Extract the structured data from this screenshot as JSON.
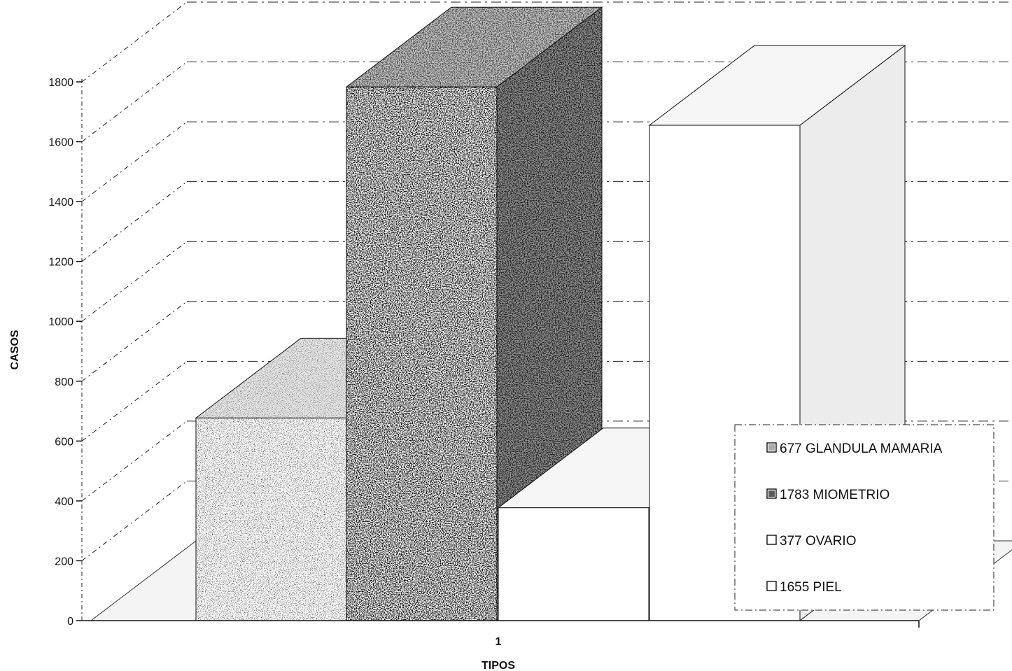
{
  "chart_data": {
    "type": "bar",
    "style": "3d",
    "categories": [
      "1"
    ],
    "series": [
      {
        "name": "677 GLANDULA MAMARIA",
        "values": [
          677
        ],
        "fill": "speckled-light"
      },
      {
        "name": "1783 MIOMETRIO",
        "values": [
          1783
        ],
        "fill": "speckled-dark"
      },
      {
        "name": "377 OVARIO",
        "values": [
          377
        ],
        "fill": "white"
      },
      {
        "name": "1655 PIEL",
        "values": [
          1655
        ],
        "fill": "white"
      }
    ],
    "xlabel": "TIPOS",
    "ylabel": "CASOS",
    "ylim": [
      0,
      1800
    ],
    "yticks": [
      "0",
      "200",
      "400",
      "600",
      "800",
      "1000",
      "1200",
      "1400",
      "1600",
      "1800"
    ],
    "grid": true,
    "legend_position": "right"
  }
}
